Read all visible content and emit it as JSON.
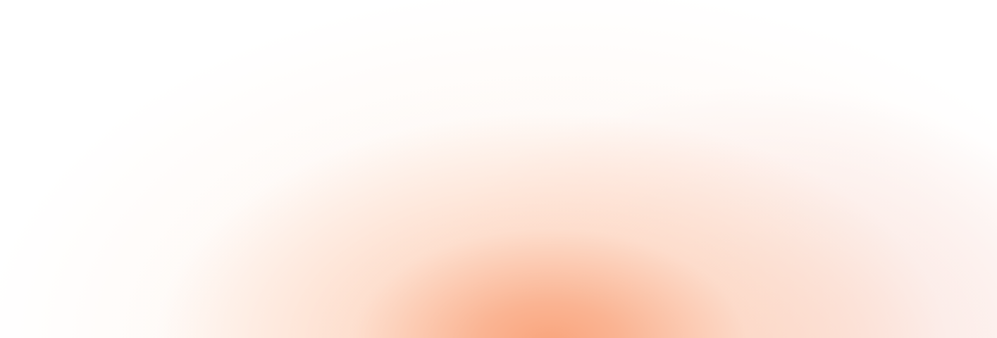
{
  "background": {
    "base_color": "#ffffff",
    "glow_core_color": "#f9a47c",
    "glow_mid_color": "#fdd3bd",
    "glow_pink_color": "#f2b4ad",
    "glow_outer_color": "#fef3ec"
  }
}
